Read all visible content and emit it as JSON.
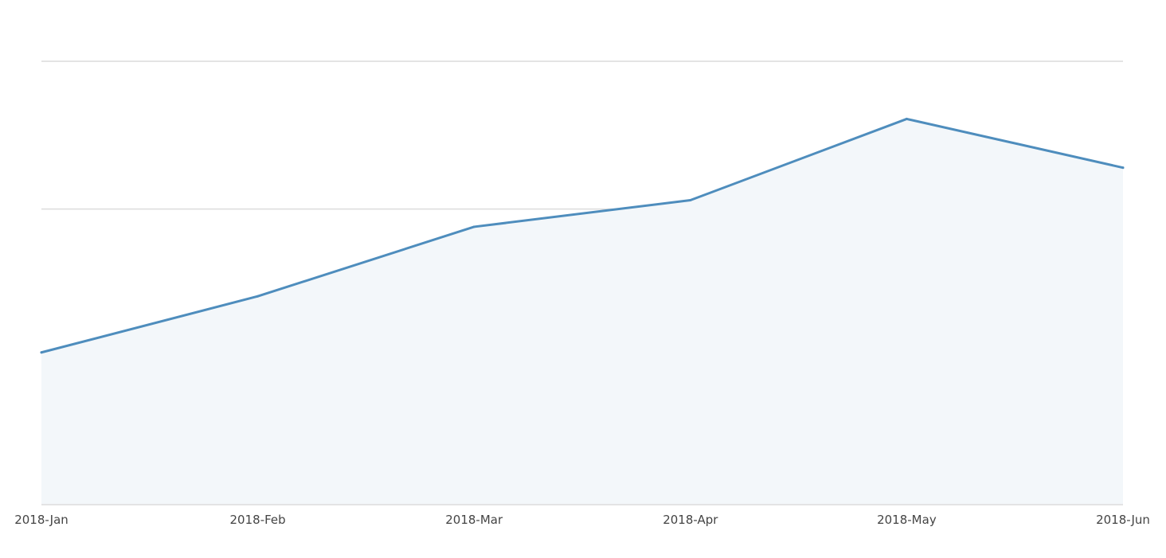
{
  "chart_data": {
    "type": "area",
    "categories": [
      "2018-Jan",
      "2018-Feb",
      "2018-Mar",
      "2018-Apr",
      "2018-May",
      "2018-Jun"
    ],
    "series": [
      {
        "values": [
          1.03,
          1.41,
          1.88,
          2.06,
          2.61,
          2.28
        ]
      }
    ],
    "ylim": [
      0,
      3
    ],
    "yticks_shown": false,
    "grid": true,
    "legend": "none",
    "colors": {
      "line": "#4e8dbd",
      "fill": "#f3f7fa",
      "grid": "#dcdcdc",
      "tick_text": "#444444"
    }
  }
}
